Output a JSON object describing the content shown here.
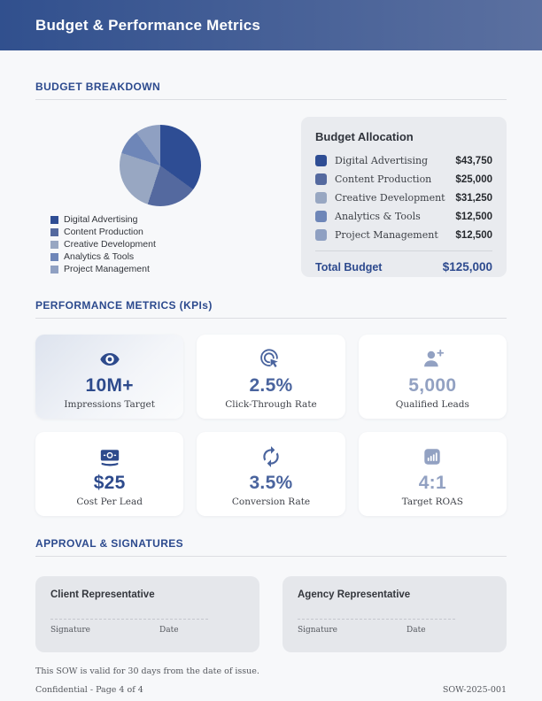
{
  "header": {
    "title": "Budget & Performance Metrics"
  },
  "sections": {
    "budget_title": "BUDGET BREAKDOWN",
    "metrics_title": "PERFORMANCE METRICS (KPIs)",
    "approval_title": "APPROVAL & SIGNATURES"
  },
  "chart_data": {
    "type": "pie",
    "title": "Budget Allocation",
    "categories": [
      "Digital Advertising",
      "Content Production",
      "Creative Development",
      "Analytics & Tools",
      "Project Management"
    ],
    "values": [
      43750,
      25000,
      31250,
      12500,
      12500
    ],
    "percentages": [
      35,
      20,
      25,
      10,
      10
    ],
    "colors": [
      "#2e4d94",
      "#54699f",
      "#98a7c2",
      "#6e86b8",
      "#8fa0c2"
    ],
    "total": 125000,
    "start_angle_deg": 0,
    "direction": "clockwise",
    "legend_position": "below-left"
  },
  "allocation": {
    "title": "Budget Allocation",
    "rows": [
      {
        "label": "Digital Advertising",
        "amount": "$43,750",
        "color": "#2e4d94"
      },
      {
        "label": "Content Production",
        "amount": "$25,000",
        "color": "#54699f"
      },
      {
        "label": "Creative Development",
        "amount": "$31,250",
        "color": "#98a7c2"
      },
      {
        "label": "Analytics & Tools",
        "amount": "$12,500",
        "color": "#6e86b8"
      },
      {
        "label": "Project Management",
        "amount": "$12,500",
        "color": "#8fa0c2"
      }
    ],
    "total_label": "Total Budget",
    "total_amount": "$125,000"
  },
  "kpis": [
    {
      "icon": "eye-icon",
      "value": "10M+",
      "label": "Impressions Target",
      "tone": "dark",
      "highlight": true
    },
    {
      "icon": "click-icon",
      "value": "2.5%",
      "label": "Click-Through Rate",
      "tone": "medium",
      "highlight": false
    },
    {
      "icon": "person-add-icon",
      "value": "5,000",
      "label": "Qualified Leads",
      "tone": "light",
      "highlight": false
    },
    {
      "icon": "money-icon",
      "value": "$25",
      "label": "Cost Per Lead",
      "tone": "dark",
      "highlight": false
    },
    {
      "icon": "sync-icon",
      "value": "3.5%",
      "label": "Conversion Rate",
      "tone": "medium",
      "highlight": false
    },
    {
      "icon": "bar-chart-icon",
      "value": "4:1",
      "label": "Target ROAS",
      "tone": "light",
      "highlight": false
    }
  ],
  "signatures": [
    {
      "title": "Client Representative",
      "signature_label": "Signature",
      "date_label": "Date"
    },
    {
      "title": "Agency Representative",
      "signature_label": "Signature",
      "date_label": "Date"
    }
  ],
  "footer": {
    "validity_note": "This SOW is valid for 30 days from the date of issue.",
    "confidential": "Confidential - Page 4 of 4",
    "doc_id": "SOW-2025-001"
  },
  "colors": {
    "header_gradient_start": "#31508e",
    "header_gradient_end": "#5b70a0",
    "section_heading": "#2c4a8e",
    "page_background": "#f7f8fa",
    "allocation_card_bg": "#e9ebef",
    "signature_card_bg": "#e5e7eb",
    "total_blue": "#2d4a8e",
    "kpi_dark": "#2d4a8c",
    "kpi_medium": "#4a649e",
    "kpi_light": "#92a1c2"
  }
}
